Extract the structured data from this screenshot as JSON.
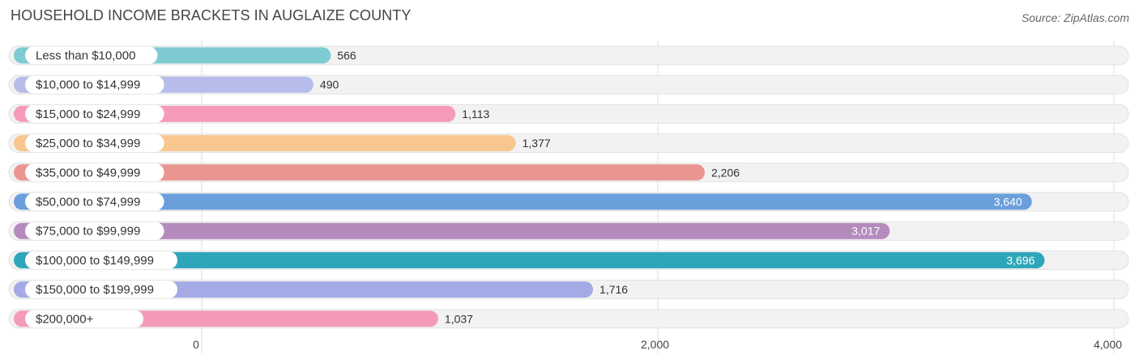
{
  "header": {
    "title": "HOUSEHOLD INCOME BRACKETS IN AUGLAIZE COUNTY",
    "source": "Source: ZipAtlas.com"
  },
  "chart_data": {
    "type": "bar",
    "orientation": "horizontal",
    "title": "HOUSEHOLD INCOME BRACKETS IN AUGLAIZE COUNTY",
    "categories": [
      "Less than $10,000",
      "$10,000 to $14,999",
      "$15,000 to $24,999",
      "$25,000 to $34,999",
      "$35,000 to $49,999",
      "$50,000 to $74,999",
      "$75,000 to $99,999",
      "$100,000 to $149,999",
      "$150,000 to $199,999",
      "$200,000+"
    ],
    "values": [
      566,
      490,
      1113,
      1377,
      2206,
      3640,
      3017,
      3696,
      1716,
      1037
    ],
    "value_labels": [
      "566",
      "490",
      "1,113",
      "1,377",
      "2,206",
      "3,640",
      "3,017",
      "3,696",
      "1,716",
      "1,037"
    ],
    "colors": [
      "#7ecbd3",
      "#b6bdea",
      "#f59ab9",
      "#f8c68f",
      "#ea9590",
      "#6a9fdc",
      "#b58bbd",
      "#2ea6b9",
      "#a3aae6",
      "#f59ab9"
    ],
    "xlim": [
      0,
      4000
    ],
    "xticks": [
      0,
      2000,
      4000
    ],
    "xtick_labels": [
      "0",
      "2,000",
      "4,000"
    ],
    "grid": true,
    "legend": "none"
  }
}
